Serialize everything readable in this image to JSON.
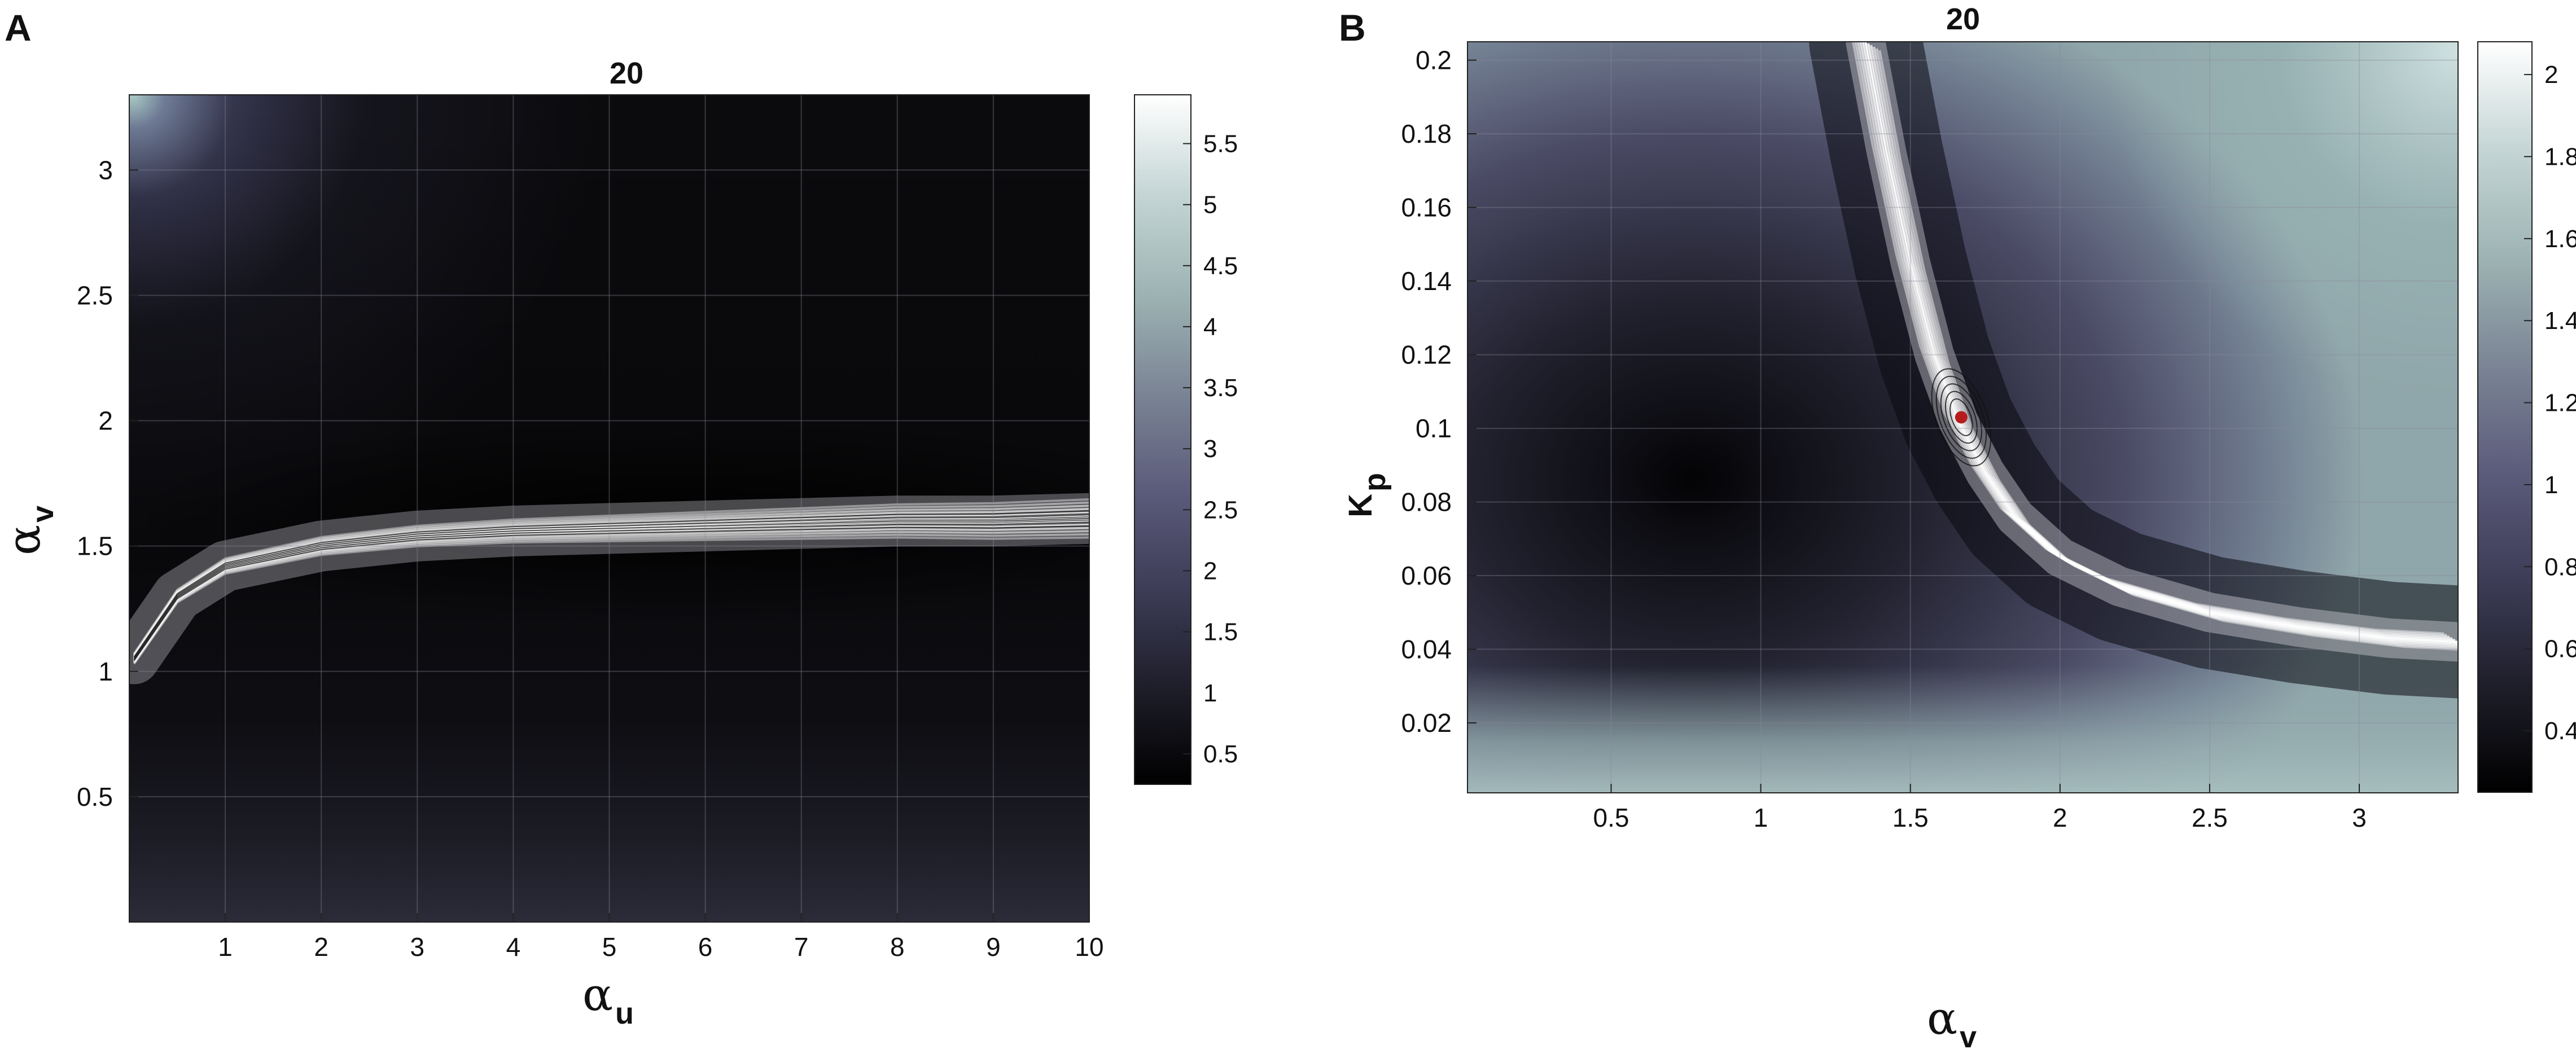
{
  "chart_data": [
    {
      "panel": "A",
      "type": "heatmap",
      "title": "20",
      "xlabel": "α_u",
      "ylabel": "α_v",
      "x_label_main": "α",
      "x_label_sub": "u",
      "y_label_main": "α",
      "y_label_sub": "v",
      "xlim": [
        0,
        10
      ],
      "ylim": [
        0,
        3.3
      ],
      "x_ticks": [
        "1",
        "2",
        "3",
        "4",
        "5",
        "6",
        "7",
        "8",
        "9",
        "10"
      ],
      "x_tick_values": [
        1,
        2,
        3,
        4,
        5,
        6,
        7,
        8,
        9,
        10
      ],
      "y_ticks": [
        "0.5",
        "1",
        "1.5",
        "2",
        "2.5",
        "3"
      ],
      "y_tick_values": [
        0.5,
        1,
        1.5,
        2,
        2.5,
        3
      ],
      "colorbar": {
        "range": [
          0.25,
          5.9
        ],
        "ticks": [
          "0.5",
          "1",
          "1.5",
          "2",
          "2.5",
          "3",
          "3.5",
          "4",
          "4.5",
          "5",
          "5.5"
        ],
        "tick_values": [
          0.5,
          1,
          1.5,
          2,
          2.5,
          3,
          3.5,
          4,
          4.5,
          5,
          5.5
        ]
      },
      "ridge": {
        "description_values": {
          "x": [
            0.05,
            0.5,
            1,
            2,
            3,
            4,
            5,
            6,
            7,
            8,
            9,
            10
          ],
          "y": [
            1.05,
            1.3,
            1.42,
            1.5,
            1.54,
            1.56,
            1.57,
            1.58,
            1.59,
            1.6,
            1.6,
            1.61
          ]
        }
      },
      "grid": true
    },
    {
      "panel": "B",
      "type": "heatmap",
      "title": "20",
      "xlabel": "α_v",
      "ylabel": "K_p",
      "x_label_main": "α",
      "x_label_sub": "v",
      "y_label_main": "K",
      "y_label_sub": "p",
      "xlim": [
        0.02,
        3.33
      ],
      "ylim": [
        0.001,
        0.205
      ],
      "x_ticks": [
        "0.5",
        "1",
        "1.5",
        "2",
        "2.5",
        "3"
      ],
      "x_tick_values": [
        0.5,
        1,
        1.5,
        2,
        2.5,
        3
      ],
      "y_ticks": [
        "0.02",
        "0.04",
        "0.06",
        "0.08",
        "0.1",
        "0.12",
        "0.14",
        "0.16",
        "0.18",
        "0.2"
      ],
      "y_tick_values": [
        0.02,
        0.04,
        0.06,
        0.08,
        0.1,
        0.12,
        0.14,
        0.16,
        0.18,
        0.2
      ],
      "colorbar": {
        "range": [
          0.25,
          2.08
        ],
        "ticks": [
          "0.4",
          "0.6",
          "0.8",
          "1",
          "1.2",
          "1.4",
          "1.6",
          "1.8",
          "2"
        ],
        "tick_values": [
          0.4,
          0.6,
          0.8,
          1,
          1.2,
          1.4,
          1.6,
          1.8,
          2
        ]
      },
      "ridge": {
        "description_values": {
          "x": [
            1.35,
            1.42,
            1.5,
            1.58,
            1.66,
            1.75,
            1.85,
            2.0,
            2.2,
            2.5,
            2.8,
            3.1,
            3.33
          ],
          "y": [
            0.205,
            0.175,
            0.145,
            0.12,
            0.102,
            0.088,
            0.076,
            0.065,
            0.057,
            0.05,
            0.046,
            0.043,
            0.042
          ]
        }
      },
      "optimum_marker": {
        "x": 1.67,
        "y": 0.103,
        "color": "#b51d1d"
      },
      "grid": true
    }
  ],
  "panels": {
    "A": {
      "letter": "A"
    },
    "B": {
      "letter": "B"
    }
  },
  "colors": {
    "colormap": [
      "#000000",
      "#1e1e2a",
      "#3c3c56",
      "#5a5a7a",
      "#7b8595",
      "#9db3b3",
      "#c6d6d6",
      "#ffffff"
    ],
    "ridge": "#ffffff",
    "marker": "#b51d1d"
  }
}
